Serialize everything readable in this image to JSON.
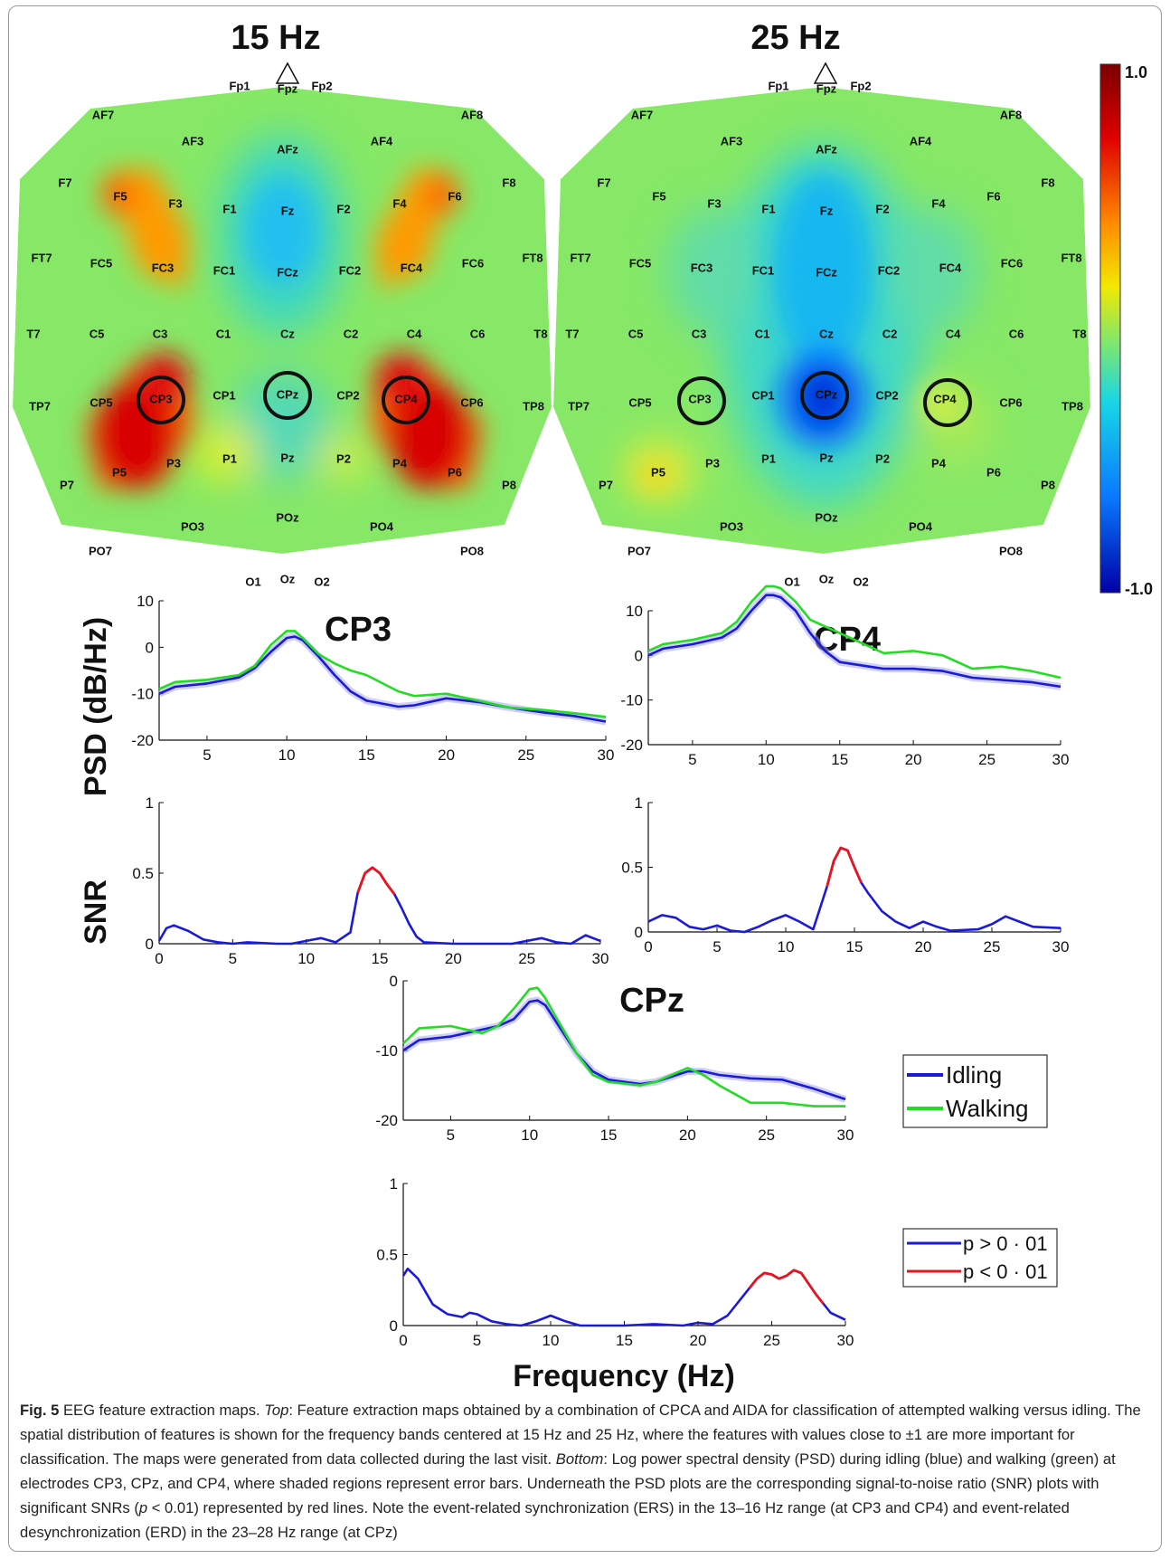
{
  "maps": [
    {
      "title": "15 Hz",
      "circled": [
        "CP3",
        "CPz",
        "CP4"
      ]
    },
    {
      "title": "25 Hz",
      "circled": [
        "CP3",
        "CPz",
        "CP4"
      ]
    }
  ],
  "colorbar": {
    "max_label": "1.0",
    "min_label": "-1.0",
    "colors": [
      "#7a0000",
      "#e00000",
      "#ff8a00",
      "#f2e800",
      "#86e866",
      "#18d6e6",
      "#0a78ff",
      "#0000a6"
    ]
  },
  "electrodes": [
    "Fp1",
    "Fpz",
    "Fp2",
    "AF7",
    "AF3",
    "AFz",
    "AF4",
    "AF8",
    "F7",
    "F5",
    "F3",
    "F1",
    "Fz",
    "F2",
    "F4",
    "F6",
    "F8",
    "FT7",
    "FC5",
    "FC3",
    "FC1",
    "FCz",
    "FC2",
    "FC4",
    "FC6",
    "FT8",
    "T7",
    "C5",
    "C3",
    "C1",
    "Cz",
    "C2",
    "C4",
    "C6",
    "T8",
    "TP7",
    "CP5",
    "CP3",
    "CP1",
    "CPz",
    "CP2",
    "CP4",
    "CP6",
    "TP8",
    "P7",
    "P5",
    "P3",
    "P1",
    "Pz",
    "P2",
    "P4",
    "P6",
    "P8",
    "PO7",
    "PO3",
    "POz",
    "PO4",
    "PO8",
    "O1",
    "Oz",
    "O2"
  ],
  "labels": {
    "psd_axis": "PSD (dB/Hz)",
    "snr_axis": "SNR",
    "frequency_axis": "Frequency (Hz)"
  },
  "legend_psd": [
    {
      "name": "Idling",
      "color": "#1a1adb"
    },
    {
      "name": "Walking",
      "color": "#22dd22"
    }
  ],
  "legend_snr": [
    {
      "name": "p > 0 · 01",
      "color": "#1a1adb"
    },
    {
      "name": "p < 0 · 01",
      "color": "#e8141e"
    }
  ],
  "chart_data": [
    {
      "type": "line",
      "title": "CP3",
      "ylabel": "PSD (dB/Hz)",
      "xlim": [
        2,
        30
      ],
      "ylim": [
        -20,
        10
      ],
      "xticks": [
        5,
        10,
        15,
        20,
        25,
        30
      ],
      "yticks": [
        -20,
        -10,
        0,
        10
      ],
      "x": [
        2,
        3,
        5,
        7,
        8,
        9,
        10,
        10.5,
        11,
        12,
        13,
        14,
        15,
        17,
        18,
        20,
        22,
        24,
        26,
        28,
        30
      ],
      "series": [
        {
          "name": "Idling",
          "values": [
            -10,
            -8.5,
            -7.8,
            -6.5,
            -4.5,
            -1,
            2,
            2.3,
            1.5,
            -2,
            -6,
            -9.5,
            -11.5,
            -12.8,
            -12.5,
            -11,
            -11.8,
            -13,
            -14,
            -14.8,
            -16
          ]
        },
        {
          "name": "Walking",
          "values": [
            -9,
            -7.5,
            -7,
            -6,
            -4,
            0.5,
            3.5,
            3.5,
            2,
            -1.5,
            -3.5,
            -5,
            -6,
            -9.5,
            -10.5,
            -10,
            -11.5,
            -13,
            -13.5,
            -14.2,
            -15
          ]
        }
      ]
    },
    {
      "type": "line",
      "title": "CP4",
      "ylabel": "PSD (dB/Hz)",
      "xlim": [
        2,
        30
      ],
      "ylim": [
        -20,
        10
      ],
      "xticks": [
        5,
        10,
        15,
        20,
        25,
        30
      ],
      "yticks": [
        -20,
        -10,
        0,
        10
      ],
      "x": [
        2,
        3,
        5,
        7,
        8,
        9,
        10,
        10.5,
        11,
        12,
        13,
        14,
        15,
        17,
        18,
        20,
        22,
        24,
        26,
        28,
        30
      ],
      "series": [
        {
          "name": "Idling",
          "values": [
            0,
            1.5,
            2.5,
            4,
            6,
            10,
            13.5,
            13.5,
            13,
            10,
            5,
            1,
            -1.5,
            -2.5,
            -3,
            -3,
            -3.5,
            -5,
            -5.5,
            -6,
            -7
          ]
        },
        {
          "name": "Walking",
          "values": [
            1,
            2.5,
            3.5,
            5,
            7.5,
            12,
            15.5,
            15.5,
            15,
            12,
            8,
            6.5,
            5,
            2,
            0.5,
            1,
            0,
            -3,
            -2.5,
            -3.5,
            -5
          ]
        }
      ]
    },
    {
      "type": "line",
      "title": "CPz",
      "xlim": [
        2,
        30
      ],
      "ylim": [
        -20,
        0
      ],
      "xticks": [
        5,
        10,
        15,
        20,
        25,
        30
      ],
      "yticks": [
        -20,
        -10,
        0
      ],
      "x": [
        2,
        3,
        5,
        7,
        8,
        9,
        10,
        10.5,
        11,
        12,
        13,
        14,
        15,
        17,
        18,
        20,
        21,
        22,
        24,
        26,
        28,
        30
      ],
      "series": [
        {
          "name": "Idling",
          "values": [
            -10,
            -8.5,
            -8,
            -7,
            -6.5,
            -5.5,
            -3,
            -2.8,
            -3.5,
            -7,
            -10.5,
            -13,
            -14.2,
            -14.8,
            -14.5,
            -13,
            -13,
            -13.5,
            -14,
            -14.2,
            -15.5,
            -17
          ]
        },
        {
          "name": "Walking",
          "values": [
            -9,
            -6.8,
            -6.5,
            -7.5,
            -6.5,
            -4,
            -1.2,
            -1,
            -2.5,
            -6.5,
            -10.5,
            -13.5,
            -14.5,
            -15,
            -14.5,
            -12.5,
            -13.5,
            -15,
            -17.5,
            -17.5,
            -18,
            -18
          ]
        }
      ]
    },
    {
      "type": "line",
      "title": "CP3",
      "ylabel": "SNR",
      "xlim": [
        0,
        30
      ],
      "ylim": [
        0,
        1
      ],
      "xticks": [
        0,
        5,
        10,
        15,
        20,
        25,
        30
      ],
      "yticks": [
        0,
        0.5,
        1
      ],
      "x": [
        0,
        0.5,
        1,
        2,
        3,
        4,
        5,
        6,
        8,
        9,
        10,
        11,
        12,
        13,
        13.5,
        14,
        14.5,
        15,
        15.5,
        16,
        16.5,
        17,
        17.5,
        18,
        20,
        22,
        24,
        26,
        27,
        28,
        29,
        30
      ],
      "series": [
        {
          "name": "SNR",
          "values": [
            0.02,
            0.11,
            0.13,
            0.09,
            0.03,
            0.01,
            0,
            0.01,
            0,
            0,
            0.02,
            0.04,
            0.01,
            0.08,
            0.36,
            0.5,
            0.54,
            0.5,
            0.42,
            0.35,
            0.25,
            0.14,
            0.05,
            0.01,
            0,
            0,
            0,
            0.04,
            0.01,
            0,
            0.06,
            0.02
          ]
        }
      ],
      "significant_ranges": [
        [
          13.5,
          16
        ]
      ]
    },
    {
      "type": "line",
      "title": "CP4",
      "ylabel": "SNR",
      "xlim": [
        0,
        30
      ],
      "ylim": [
        0,
        1
      ],
      "xticks": [
        0,
        5,
        10,
        15,
        20,
        25,
        30
      ],
      "yticks": [
        0,
        0.5,
        1
      ],
      "x": [
        0,
        1,
        2,
        3,
        4,
        5,
        6,
        7,
        8,
        9,
        10,
        11,
        12,
        13,
        13.5,
        14,
        14.5,
        15,
        15.5,
        16,
        17,
        18,
        19,
        20,
        21,
        22,
        24,
        25,
        26,
        27,
        28,
        30
      ],
      "series": [
        {
          "name": "SNR",
          "values": [
            0.08,
            0.13,
            0.11,
            0.04,
            0.02,
            0.05,
            0.01,
            0,
            0.04,
            0.09,
            0.13,
            0.08,
            0.02,
            0.35,
            0.55,
            0.65,
            0.63,
            0.5,
            0.38,
            0.3,
            0.16,
            0.08,
            0.03,
            0.08,
            0.04,
            0.01,
            0.02,
            0.06,
            0.12,
            0.08,
            0.04,
            0.03
          ]
        }
      ],
      "significant_ranges": [
        [
          13,
          15.5
        ]
      ]
    },
    {
      "type": "line",
      "title": "CPz",
      "xlim": [
        0,
        30
      ],
      "ylim": [
        0,
        1
      ],
      "xticks": [
        0,
        5,
        10,
        15,
        20,
        25,
        30
      ],
      "yticks": [
        0,
        0.5,
        1
      ],
      "x": [
        0,
        0.3,
        1,
        2,
        3,
        4,
        4.5,
        5,
        6,
        7,
        8,
        9,
        10,
        11,
        12,
        15,
        17,
        19,
        20,
        21,
        22,
        23,
        24,
        24.5,
        25,
        25.5,
        26,
        26.5,
        27,
        28,
        29,
        30
      ],
      "series": [
        {
          "name": "SNR",
          "values": [
            0.35,
            0.4,
            0.33,
            0.15,
            0.08,
            0.06,
            0.09,
            0.08,
            0.03,
            0.01,
            0,
            0.03,
            0.07,
            0.03,
            0,
            0,
            0.01,
            0,
            0.02,
            0.01,
            0.07,
            0.2,
            0.33,
            0.37,
            0.36,
            0.33,
            0.35,
            0.39,
            0.37,
            0.22,
            0.09,
            0.04
          ]
        }
      ],
      "significant_ranges": [
        [
          23.5,
          28.5
        ]
      ]
    }
  ],
  "caption": {
    "fig": "Fig. 5",
    "intro": "EEG feature extraction maps.",
    "top_label": "Top",
    "top_text": ": Feature extraction maps obtained by a combination of CPCA and AIDA for classification of attempted walking versus idling. The spatial distribution of features is shown for the frequency bands centered at 15 Hz and 25 Hz, where the features with values close to ±1 are more important for classification. The maps were generated from data collected during the last visit.",
    "bottom_label": "Bottom",
    "bottom_text": ": Log power spectral density (PSD) during idling (blue) and walking (green) at electrodes CP3, CPz, and CP4, where shaded regions represent error bars. Underneath the PSD plots are the corresponding signal-to-noise ratio (SNR) plots with significant SNRs (",
    "p_symbol": "p",
    "tail_text": " < 0.01) represented by red lines. Note the event-related synchronization (ERS) in the 13–16 Hz range (at CP3 and CP4) and event-related desynchronization (ERD) in the 23–28 Hz range (at CPz)"
  }
}
